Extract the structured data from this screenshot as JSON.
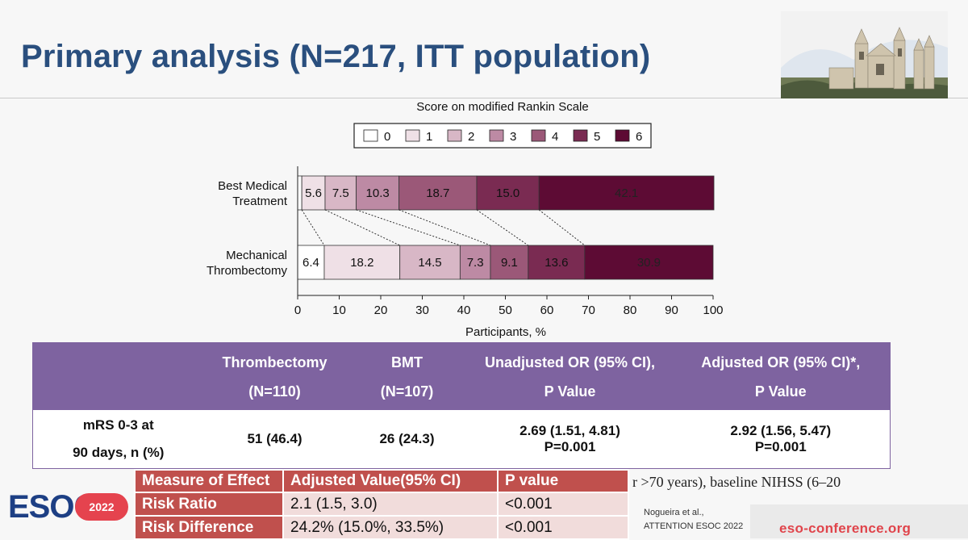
{
  "slide": {
    "title": "Primary analysis (N=217, ITT population)",
    "logo_text": "ESOC",
    "logo_year": "2022",
    "website": "eso-conference.org",
    "citation_line1": "Nogueira et al.,",
    "citation_line2": "ATTENTION  ESOC 2022",
    "truncated_text": "r >70 years), baseline NIHSS (6–20",
    "accent_colors": {
      "title": "#2a4f7e",
      "table_header": "#7e63a0",
      "effect_header": "#c0504d",
      "effect_row": "#f1dcdb",
      "brand_red": "#e0444b"
    }
  },
  "chart_data": {
    "type": "bar",
    "orientation": "horizontal",
    "stacked": true,
    "legend_title": "Score on modified Rankin Scale",
    "legend_placement": "top-center",
    "categories": [
      "0",
      "1",
      "2",
      "3",
      "4",
      "5",
      "6"
    ],
    "colors": [
      "#ffffff",
      "#efe0e6",
      "#d8b7c6",
      "#bd8aa4",
      "#9b5878",
      "#7a2b52",
      "#5d0b34"
    ],
    "groups": [
      {
        "label_lines": [
          "Best Medical",
          "Treatment"
        ],
        "values": [
          1.0,
          5.6,
          7.5,
          10.3,
          18.7,
          15.0,
          42.1
        ],
        "labels": [
          "",
          "5.6",
          "7.5",
          "10.3",
          "18.7",
          "15.0",
          "42.1"
        ]
      },
      {
        "label_lines": [
          "Mechanical",
          "Thrombectomy"
        ],
        "values": [
          6.4,
          18.2,
          14.5,
          7.3,
          9.1,
          13.6,
          30.9
        ],
        "labels": [
          "6.4",
          "18.2",
          "14.5",
          "7.3",
          "9.1",
          "13.6",
          "30.9"
        ]
      }
    ],
    "xlabel": "Participants, %",
    "xlim": [
      0,
      100
    ],
    "xticks": [
      0,
      10,
      20,
      30,
      40,
      50,
      60,
      70,
      80,
      90,
      100
    ]
  },
  "results_table": {
    "headers": [
      {
        "l1": "",
        "l2": ""
      },
      {
        "l1": "Thrombectomy",
        "l2": "(N=110)"
      },
      {
        "l1": "BMT",
        "l2": "(N=107)"
      },
      {
        "l1": "Unadjusted OR (95% CI),",
        "l2": "P Value"
      },
      {
        "l1": "Adjusted OR (95% CI)*,",
        "l2": "P Value"
      }
    ],
    "row": {
      "label_l1": "mRS 0-3 at",
      "label_l2": "90 days, n (%)",
      "thrombectomy": "51 (46.4)",
      "bmt": "26 (24.3)",
      "unadj_or": "2.69 (1.51, 4.81)",
      "unadj_p": "P=0.001",
      "adj_or": "2.92 (1.56, 5.47)",
      "adj_p": "P=0.001"
    }
  },
  "effect_table": {
    "headers": [
      "Measure of Effect",
      "Adjusted Value(95% CI)",
      "P value"
    ],
    "rows": [
      [
        "Risk Ratio",
        "2.1 (1.5, 3.0)",
        "<0.001"
      ],
      [
        "Risk Difference",
        "24.2% (15.0%, 33.5%)",
        "<0.001"
      ]
    ]
  }
}
